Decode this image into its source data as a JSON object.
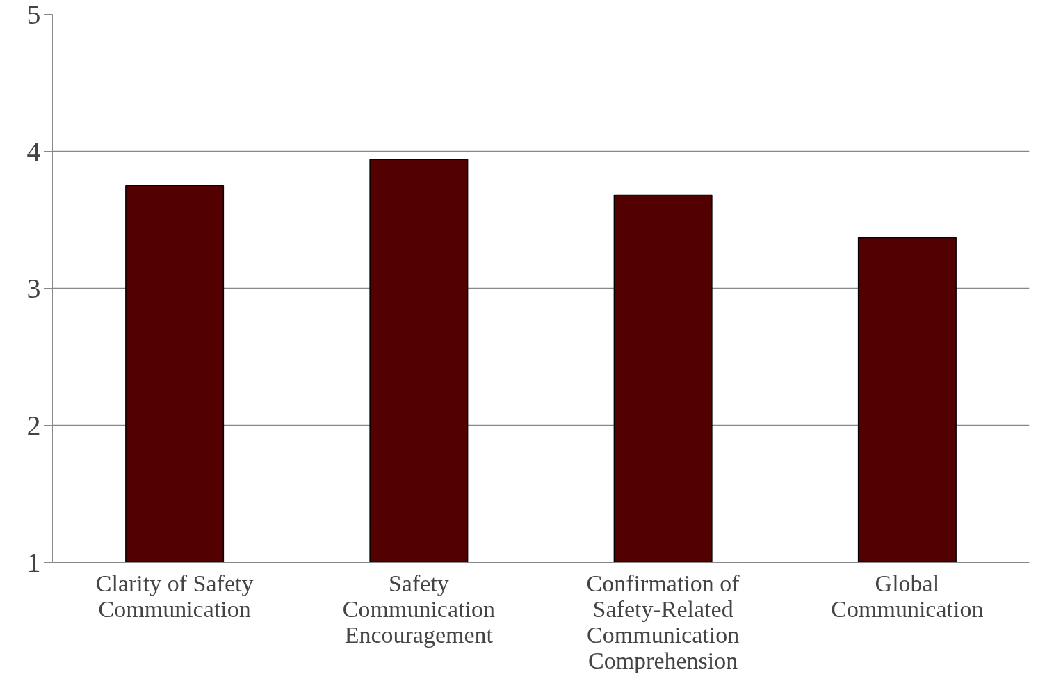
{
  "chart_data": {
    "type": "bar",
    "categories": [
      "Clarity of Safety\nCommunication",
      "Safety\nCommunication\nEncouragement",
      "Confirmation of\nSafety-Related\nCommunication\nComprehension",
      "Global\nCommunication"
    ],
    "values": [
      3.75,
      3.94,
      3.68,
      3.37
    ],
    "color": "#520000",
    "ylim": [
      1,
      5
    ],
    "yticks": [
      1,
      2,
      3,
      4,
      5
    ],
    "grid": "y"
  }
}
